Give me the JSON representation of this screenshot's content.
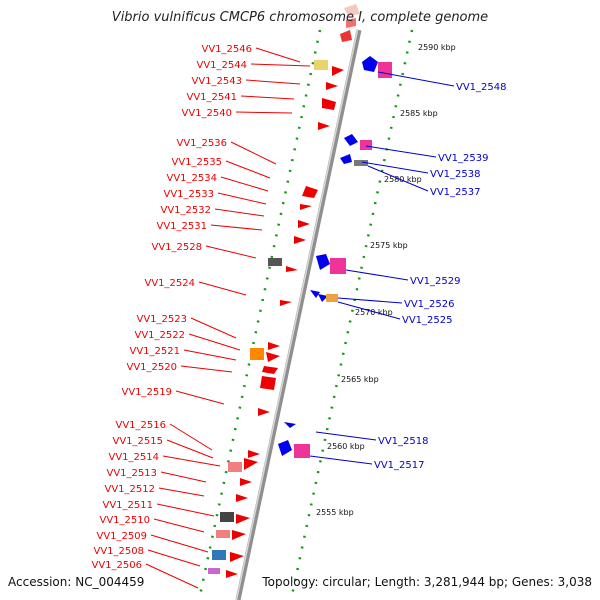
{
  "title": "Vibrio vulnificus CMCP6 chromosome I, complete genome",
  "accession": "Accession: NC_004459",
  "topology": "Topology: circular; Length: 3,281,944 bp; Genes: 3,038",
  "colors": {
    "left_labels": "#ee0000",
    "right_labels": "#0000cc",
    "backbone": "#8f8f8f",
    "ticks": "#119911"
  },
  "kbp_labels": [
    "2590 kbp",
    "2585 kbp",
    "2580 kbp",
    "2575 kbp",
    "2570 kbp",
    "2565 kbp",
    "2560 kbp",
    "2555 kbp"
  ],
  "left_genes": [
    "VV1_2546",
    "VV1_2544",
    "VV1_2543",
    "VV1_2541",
    "VV1_2540",
    "VV1_2536",
    "VV1_2535",
    "VV1_2534",
    "VV1_2533",
    "VV1_2532",
    "VV1_2531",
    "VV1_2528",
    "VV1_2524",
    "VV1_2523",
    "VV1_2522",
    "VV1_2521",
    "VV1_2520",
    "VV1_2519",
    "VV1_2516",
    "VV1_2515",
    "VV1_2514",
    "VV1_2513",
    "VV1_2512",
    "VV1_2511",
    "VV1_2510",
    "VV1_2509",
    "VV1_2508",
    "VV1_2506"
  ],
  "right_genes": [
    "VV1_2548",
    "VV1_2539",
    "VV1_2538",
    "VV1_2537",
    "VV1_2529",
    "VV1_2526",
    "VV1_2525",
    "VV1_2518",
    "VV1_2517"
  ]
}
